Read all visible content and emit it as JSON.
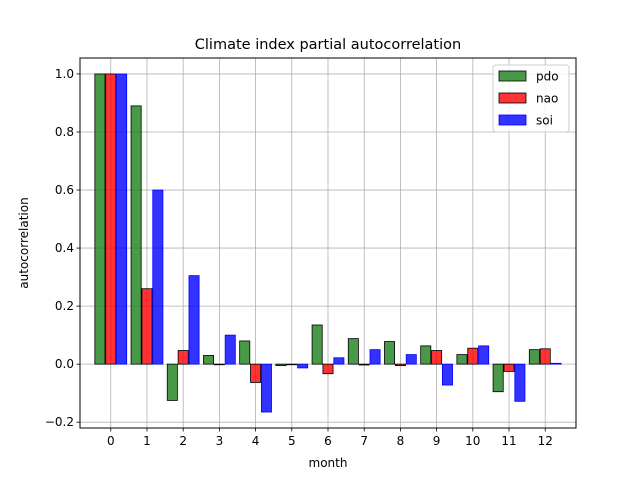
{
  "chart_data": {
    "type": "bar",
    "title": "Climate index partial autocorrelation",
    "xlabel": "month",
    "ylabel": "autocorrelation",
    "categories": [
      "0",
      "1",
      "2",
      "3",
      "4",
      "5",
      "6",
      "7",
      "8",
      "9",
      "10",
      "11",
      "12"
    ],
    "ylim": [
      -0.22,
      1.055
    ],
    "xlim": [
      -0.85,
      12.85
    ],
    "yticks": [
      -0.2,
      0.0,
      0.2,
      0.4,
      0.6,
      0.8,
      1.0
    ],
    "ytick_labels": [
      "−0.2",
      "0.0",
      "0.2",
      "0.4",
      "0.6",
      "0.8",
      "1.0"
    ],
    "grid": true,
    "legend_position": "top-right",
    "series": [
      {
        "name": "pdo",
        "color": "#1a801a",
        "edge": "#000000",
        "values": [
          1.0,
          0.89,
          -0.125,
          0.03,
          0.08,
          -0.005,
          0.135,
          0.088,
          0.078,
          0.063,
          0.033,
          -0.095,
          0.05
        ]
      },
      {
        "name": "nao",
        "color": "#ff0000",
        "edge": "#000000",
        "values": [
          1.0,
          0.26,
          0.047,
          0.0,
          -0.063,
          0.0,
          -0.033,
          -0.003,
          -0.005,
          0.047,
          0.055,
          -0.025,
          0.053
        ]
      },
      {
        "name": "soi",
        "color": "#0000ff",
        "edge": "#0000ff",
        "values": [
          1.0,
          0.6,
          0.305,
          0.1,
          -0.165,
          -0.013,
          0.022,
          0.05,
          0.033,
          -0.072,
          0.063,
          -0.128,
          0.003
        ]
      }
    ]
  }
}
